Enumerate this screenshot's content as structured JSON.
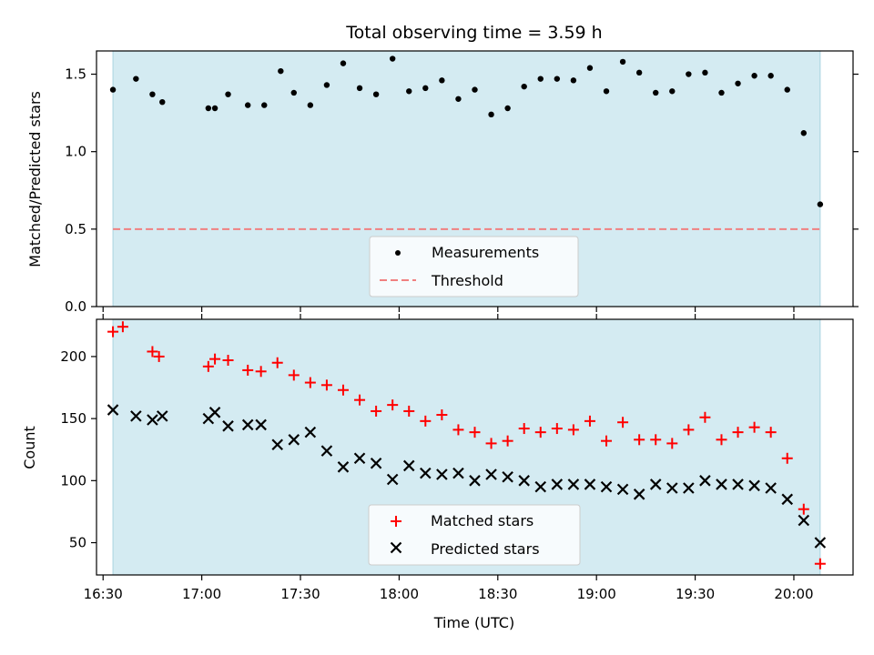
{
  "chart_data": [
    {
      "type": "scatter",
      "title": "Total observing time = 3.59 h",
      "xlabel": "",
      "ylabel": "Matched/Predicted stars",
      "xlim": [
        "16:28",
        "20:18"
      ],
      "ylim": [
        0,
        1.65
      ],
      "yticks": [
        0,
        0.5,
        1.0,
        1.5
      ],
      "ytick_labels": [
        "0.0",
        "0.5",
        "1.0",
        "1.5"
      ],
      "observing_window": [
        "16:33",
        "20:08"
      ],
      "legend_position": "lower-center",
      "series": [
        {
          "name": "Measurements",
          "color": "#000000",
          "marker": "dot",
          "x": [
            "16:33",
            "16:40",
            "16:45",
            "16:48",
            "17:02",
            "17:04",
            "17:08",
            "17:14",
            "17:19",
            "17:24",
            "17:28",
            "17:33",
            "17:38",
            "17:43",
            "17:48",
            "17:53",
            "17:58",
            "18:03",
            "18:08",
            "18:13",
            "18:18",
            "18:23",
            "18:28",
            "18:33",
            "18:38",
            "18:43",
            "18:48",
            "18:53",
            "18:58",
            "19:03",
            "19:08",
            "19:13",
            "19:18",
            "19:23",
            "19:28",
            "19:33",
            "19:38",
            "19:43",
            "19:48",
            "19:53",
            "19:58",
            "20:03",
            "20:08"
          ],
          "y": [
            1.4,
            1.47,
            1.37,
            1.32,
            1.28,
            1.28,
            1.37,
            1.3,
            1.3,
            1.52,
            1.38,
            1.3,
            1.43,
            1.57,
            1.41,
            1.37,
            1.6,
            1.39,
            1.41,
            1.46,
            1.34,
            1.4,
            1.24,
            1.28,
            1.42,
            1.47,
            1.47,
            1.46,
            1.54,
            1.39,
            1.58,
            1.51,
            1.38,
            1.39,
            1.5,
            1.51,
            1.38,
            1.44,
            1.49,
            1.49,
            1.4,
            1.12,
            0.66
          ]
        },
        {
          "name": "Threshold",
          "color": "#f08080",
          "line_style": "dashed",
          "value": 0.5
        }
      ]
    },
    {
      "type": "scatter",
      "title": "",
      "xlabel": "Time (UTC)",
      "ylabel": "Count",
      "xlim": [
        "16:28",
        "20:18"
      ],
      "ylim": [
        24,
        230
      ],
      "yticks": [
        50,
        100,
        150,
        200
      ],
      "ytick_labels": [
        "50",
        "100",
        "150",
        "200"
      ],
      "xticks": [
        "16:30",
        "17:00",
        "17:30",
        "18:00",
        "18:30",
        "19:00",
        "19:30",
        "20:00"
      ],
      "observing_window": [
        "16:33",
        "20:08"
      ],
      "legend_position": "lower-center",
      "series": [
        {
          "name": "Matched stars",
          "color": "#ff0000",
          "marker": "plus",
          "x": [
            "16:33",
            "16:36",
            "16:45",
            "16:47",
            "17:02",
            "17:04",
            "17:08",
            "17:14",
            "17:18",
            "17:23",
            "17:28",
            "17:33",
            "17:38",
            "17:43",
            "17:48",
            "17:53",
            "17:58",
            "18:03",
            "18:08",
            "18:13",
            "18:18",
            "18:23",
            "18:28",
            "18:33",
            "18:38",
            "18:43",
            "18:48",
            "18:53",
            "18:58",
            "19:03",
            "19:08",
            "19:13",
            "19:18",
            "19:23",
            "19:28",
            "19:33",
            "19:38",
            "19:43",
            "19:48",
            "19:53",
            "19:58",
            "20:03",
            "20:08"
          ],
          "y": [
            220,
            224,
            204,
            200,
            192,
            198,
            197,
            189,
            188,
            195,
            185,
            179,
            177,
            173,
            165,
            156,
            161,
            156,
            148,
            153,
            141,
            139,
            130,
            132,
            142,
            139,
            142,
            141,
            148,
            132,
            147,
            133,
            133,
            130,
            141,
            151,
            133,
            139,
            143,
            139,
            118,
            77,
            33
          ]
        },
        {
          "name": "Predicted stars",
          "color": "#000000",
          "marker": "x",
          "x": [
            "16:33",
            "16:40",
            "16:45",
            "16:48",
            "17:02",
            "17:04",
            "17:08",
            "17:14",
            "17:18",
            "17:23",
            "17:28",
            "17:33",
            "17:38",
            "17:43",
            "17:48",
            "17:53",
            "17:58",
            "18:03",
            "18:08",
            "18:13",
            "18:18",
            "18:23",
            "18:28",
            "18:33",
            "18:38",
            "18:43",
            "18:48",
            "18:53",
            "18:58",
            "19:03",
            "19:08",
            "19:13",
            "19:18",
            "19:23",
            "19:28",
            "19:33",
            "19:38",
            "19:43",
            "19:48",
            "19:53",
            "19:58",
            "20:03",
            "20:08"
          ],
          "y": [
            157,
            152,
            149,
            152,
            150,
            155,
            144,
            145,
            145,
            129,
            133,
            139,
            124,
            111,
            118,
            114,
            101,
            112,
            106,
            105,
            106,
            100,
            105,
            103,
            100,
            95,
            97,
            97,
            97,
            95,
            93,
            89,
            97,
            94,
            94,
            100,
            97,
            97,
            96,
            94,
            85,
            68,
            50
          ]
        }
      ]
    }
  ]
}
